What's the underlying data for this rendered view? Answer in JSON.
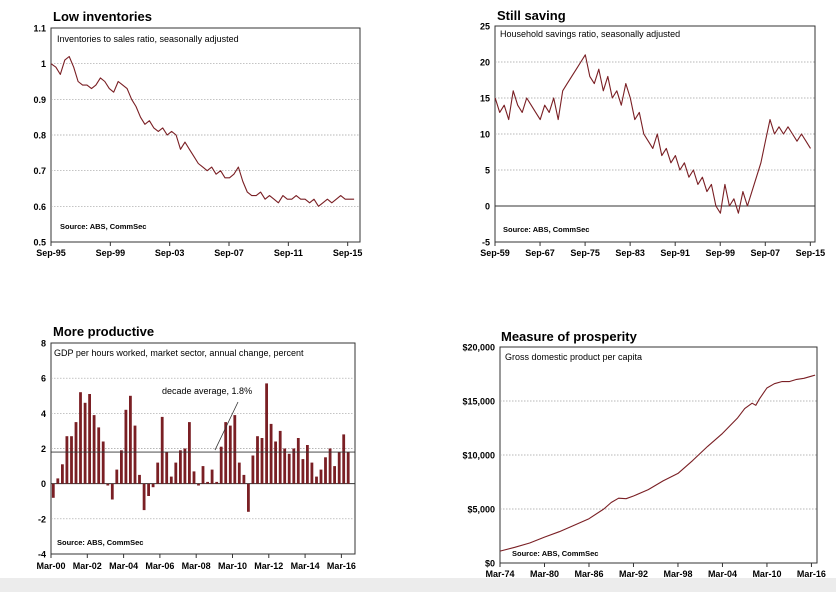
{
  "colors": {
    "series": "#7a1f24",
    "frame": "#333333",
    "grid": "#a0a0a0",
    "text": "#000000"
  },
  "chart_data": [
    {
      "id": "inventories",
      "type": "line",
      "title": "Low inventories",
      "subtitle": "Inventories to sales ratio, seasonally adjusted",
      "source": "Source: ABS, CommSec",
      "ylim": [
        0.5,
        1.1
      ],
      "yticks": [
        0.5,
        0.6,
        0.7,
        0.8,
        0.9,
        1,
        1.1
      ],
      "ytick_labels": [
        "0.5",
        "0.6",
        "0.7",
        "0.8",
        "0.9",
        "1",
        "1.1"
      ],
      "xlim": [
        1995.67,
        2016.5
      ],
      "xticks": [
        1995.67,
        1999.67,
        2003.67,
        2007.67,
        2011.67,
        2015.67
      ],
      "xtick_labels": [
        "Sep-95",
        "Sep-99",
        "Sep-03",
        "Sep-07",
        "Sep-11",
        "Sep-15"
      ],
      "grid": true,
      "series": [
        {
          "x": [
            1995.67,
            1996.0,
            1996.3,
            1996.6,
            1996.9,
            1997.2,
            1997.5,
            1997.8,
            1998.1,
            1998.4,
            1998.7,
            1999.0,
            1999.3,
            1999.6,
            1999.9,
            2000.2,
            2000.5,
            2000.8,
            2001.1,
            2001.4,
            2001.7,
            2002.0,
            2002.3,
            2002.6,
            2002.9,
            2003.2,
            2003.5,
            2003.8,
            2004.1,
            2004.4,
            2004.7,
            2005.0,
            2005.3,
            2005.6,
            2005.9,
            2006.2,
            2006.5,
            2006.8,
            2007.1,
            2007.4,
            2007.7,
            2008.0,
            2008.3,
            2008.6,
            2008.9,
            2009.2,
            2009.5,
            2009.8,
            2010.1,
            2010.4,
            2010.7,
            2011.0,
            2011.3,
            2011.6,
            2011.9,
            2012.2,
            2012.5,
            2012.8,
            2013.1,
            2013.4,
            2013.7,
            2014.0,
            2014.3,
            2014.6,
            2014.9,
            2015.2,
            2015.5,
            2015.8,
            2016.1
          ],
          "values": [
            1.0,
            0.99,
            0.97,
            1.01,
            1.02,
            0.99,
            0.95,
            0.94,
            0.94,
            0.93,
            0.94,
            0.96,
            0.95,
            0.93,
            0.92,
            0.95,
            0.94,
            0.93,
            0.9,
            0.88,
            0.85,
            0.83,
            0.84,
            0.82,
            0.81,
            0.82,
            0.8,
            0.81,
            0.8,
            0.76,
            0.78,
            0.76,
            0.74,
            0.72,
            0.71,
            0.7,
            0.71,
            0.69,
            0.7,
            0.68,
            0.68,
            0.69,
            0.71,
            0.67,
            0.64,
            0.63,
            0.63,
            0.64,
            0.62,
            0.63,
            0.62,
            0.61,
            0.63,
            0.62,
            0.62,
            0.63,
            0.62,
            0.62,
            0.61,
            0.62,
            0.6,
            0.61,
            0.62,
            0.61,
            0.62,
            0.63,
            0.62,
            0.62,
            0.62
          ]
        }
      ]
    },
    {
      "id": "saving",
      "type": "line",
      "title": "Still saving",
      "subtitle": "Household savings ratio, seasonally adjusted",
      "source": "Source: ABS, CommSec",
      "ylim": [
        -5,
        25
      ],
      "yticks": [
        -5,
        0,
        5,
        10,
        15,
        20,
        25
      ],
      "ytick_labels": [
        "-5",
        "0",
        "5",
        "10",
        "15",
        "20",
        "25"
      ],
      "xlim": [
        1959.67,
        2016.5
      ],
      "xticks": [
        1959.67,
        1967.67,
        1975.67,
        1983.67,
        1991.67,
        1999.67,
        2007.67,
        2015.67
      ],
      "xtick_labels": [
        "Sep-59",
        "Sep-67",
        "Sep-75",
        "Sep-83",
        "Sep-91",
        "Sep-99",
        "Sep-07",
        "Sep-15"
      ],
      "grid": true,
      "series": [
        {
          "x": [
            1959.7,
            1960.5,
            1961.3,
            1962.1,
            1962.9,
            1963.7,
            1964.5,
            1965.3,
            1966.1,
            1966.9,
            1967.7,
            1968.5,
            1969.3,
            1970.1,
            1970.9,
            1971.7,
            1972.5,
            1973.3,
            1974.1,
            1974.9,
            1975.7,
            1976.5,
            1977.3,
            1978.1,
            1978.9,
            1979.7,
            1980.5,
            1981.3,
            1982.1,
            1982.9,
            1983.7,
            1984.5,
            1985.3,
            1986.1,
            1986.9,
            1987.7,
            1988.5,
            1989.3,
            1990.1,
            1990.9,
            1991.7,
            1992.5,
            1993.3,
            1994.1,
            1994.9,
            1995.7,
            1996.5,
            1997.3,
            1998.1,
            1998.9,
            1999.7,
            2000.5,
            2001.3,
            2002.1,
            2002.9,
            2003.7,
            2004.5,
            2005.3,
            2006.1,
            2006.9,
            2007.7,
            2008.5,
            2009.3,
            2010.1,
            2010.9,
            2011.7,
            2012.5,
            2013.3,
            2014.1,
            2014.9,
            2015.7
          ],
          "values": [
            15,
            13,
            14,
            12,
            16,
            14,
            13,
            15,
            14,
            13,
            12,
            14,
            13,
            15,
            12,
            16,
            17,
            18,
            19,
            20,
            21,
            18,
            17,
            19,
            16,
            18,
            15,
            16,
            14,
            17,
            15,
            12,
            13,
            10,
            9,
            8,
            10,
            7,
            8,
            6,
            7,
            5,
            6,
            4,
            5,
            3,
            4,
            2,
            3,
            0,
            -1,
            3,
            0,
            1,
            -1,
            2,
            0,
            2,
            4,
            6,
            9,
            12,
            10,
            11,
            10,
            11,
            10,
            9,
            10,
            9,
            8
          ]
        }
      ]
    },
    {
      "id": "productive",
      "type": "bar",
      "title": "More productive",
      "subtitle": "GDP per hours worked, market sector, annual change, percent",
      "source": "Source: ABS, CommSec",
      "annotation": "decade average, 1.8%",
      "reference_value": 1.8,
      "ylim": [
        -4,
        8
      ],
      "yticks": [
        -4,
        -2,
        0,
        2,
        4,
        6,
        8
      ],
      "ytick_labels": [
        "-4",
        "-2",
        "0",
        "2",
        "4",
        "6",
        "8"
      ],
      "xlim": [
        2000.0,
        2016.75
      ],
      "xticks": [
        2000,
        2002,
        2004,
        2006,
        2008,
        2010,
        2012,
        2014,
        2016
      ],
      "xtick_labels": [
        "Mar-00",
        "Mar-02",
        "Mar-04",
        "Mar-06",
        "Mar-08",
        "Mar-10",
        "Mar-12",
        "Mar-14",
        "Mar-16"
      ],
      "grid": true,
      "series": [
        {
          "x": [
            2000.0,
            2000.25,
            2000.5,
            2000.75,
            2001.0,
            2001.25,
            2001.5,
            2001.75,
            2002.0,
            2002.25,
            2002.5,
            2002.75,
            2003.0,
            2003.25,
            2003.5,
            2003.75,
            2004.0,
            2004.25,
            2004.5,
            2004.75,
            2005.0,
            2005.25,
            2005.5,
            2005.75,
            2006.0,
            2006.25,
            2006.5,
            2006.75,
            2007.0,
            2007.25,
            2007.5,
            2007.75,
            2008.0,
            2008.25,
            2008.5,
            2008.75,
            2009.0,
            2009.25,
            2009.5,
            2009.75,
            2010.0,
            2010.25,
            2010.5,
            2010.75,
            2011.0,
            2011.25,
            2011.5,
            2011.75,
            2012.0,
            2012.25,
            2012.5,
            2012.75,
            2013.0,
            2013.25,
            2013.5,
            2013.75,
            2014.0,
            2014.25,
            2014.5,
            2014.75,
            2015.0,
            2015.25,
            2015.5,
            2015.75,
            2016.0,
            2016.25
          ],
          "values": [
            -0.8,
            0.3,
            1.1,
            2.7,
            2.7,
            3.5,
            5.2,
            4.6,
            5.1,
            3.9,
            3.2,
            2.4,
            -0.1,
            -0.9,
            0.8,
            1.9,
            4.2,
            5.0,
            3.3,
            0.5,
            -1.5,
            -0.7,
            -0.2,
            1.2,
            3.8,
            1.8,
            0.4,
            1.2,
            1.9,
            2.0,
            3.5,
            0.7,
            -0.1,
            1.0,
            0.1,
            0.8,
            0.1,
            2.1,
            3.5,
            3.3,
            3.9,
            1.2,
            0.5,
            -1.6,
            1.6,
            2.7,
            2.6,
            5.7,
            3.4,
            2.4,
            3.0,
            2.0,
            1.7,
            2.0,
            2.6,
            1.4,
            2.2,
            1.2,
            0.4,
            0.8,
            1.5,
            2.0,
            1.0,
            1.8,
            2.8,
            1.8
          ]
        }
      ]
    },
    {
      "id": "prosperity",
      "type": "line",
      "title": "Measure of prosperity",
      "subtitle": "Gross domestic product per capita",
      "source": "Source: ABS, CommSec",
      "ylim": [
        0,
        20000
      ],
      "yticks": [
        0,
        5000,
        10000,
        15000,
        20000
      ],
      "ytick_labels": [
        "$0",
        "$5,000",
        "$10,000",
        "$15,000",
        "$20,000"
      ],
      "xlim": [
        1974.0,
        2016.75
      ],
      "xticks": [
        1974,
        1980,
        1986,
        1992,
        1998,
        2004,
        2010,
        2016
      ],
      "xtick_labels": [
        "Mar-74",
        "Mar-80",
        "Mar-86",
        "Mar-92",
        "Mar-98",
        "Mar-04",
        "Mar-10",
        "Mar-16"
      ],
      "grid": true,
      "series": [
        {
          "x": [
            1974,
            1976,
            1978,
            1980,
            1982,
            1984,
            1986,
            1988,
            1989,
            1990,
            1991,
            1992,
            1994,
            1996,
            1998,
            2000,
            2002,
            2004,
            2006,
            2007,
            2008,
            2008.5,
            2009,
            2010,
            2011,
            2012,
            2013,
            2014,
            2015,
            2016,
            2016.5
          ],
          "values": [
            1100,
            1450,
            1850,
            2400,
            2900,
            3500,
            4100,
            5000,
            5600,
            6000,
            5950,
            6200,
            6800,
            7600,
            8300,
            9500,
            10800,
            12000,
            13400,
            14300,
            14800,
            14600,
            15200,
            16200,
            16600,
            16800,
            16800,
            17000,
            17100,
            17300,
            17400
          ]
        }
      ]
    }
  ]
}
